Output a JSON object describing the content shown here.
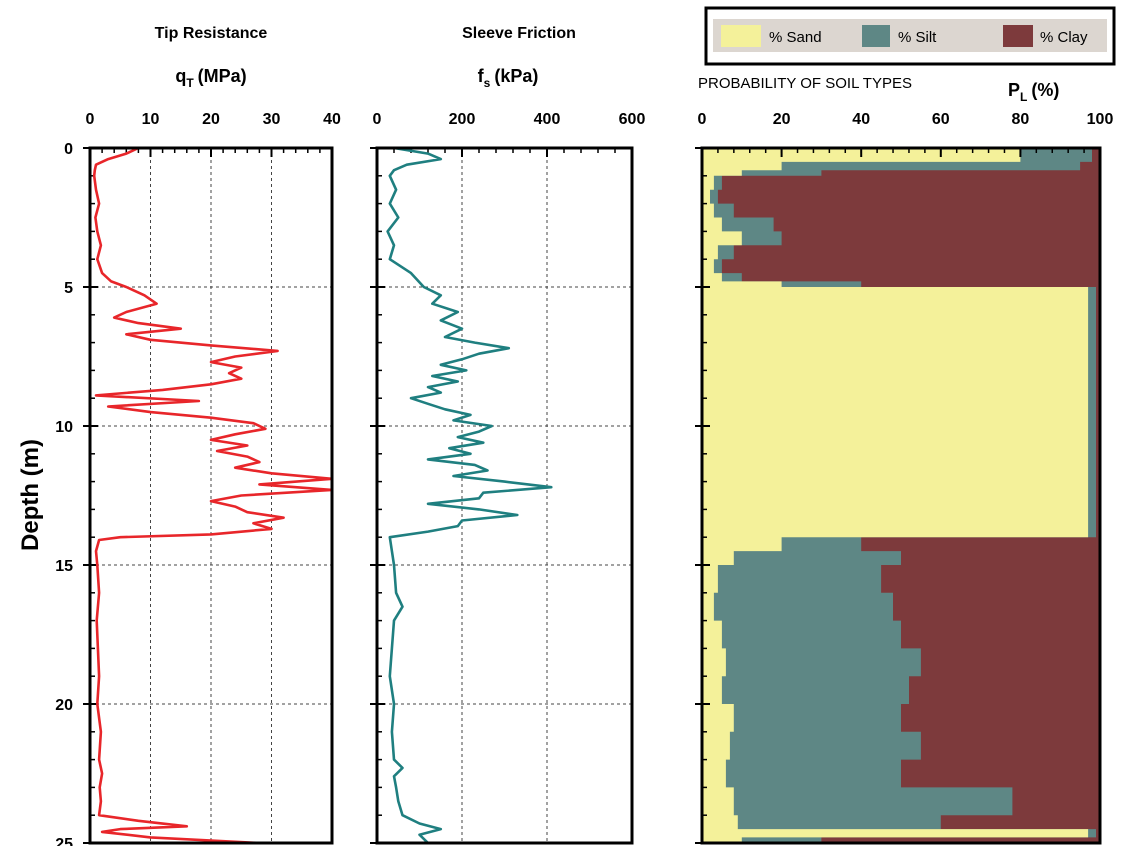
{
  "chart_data": [
    {
      "type": "line",
      "title": "Tip Resistance",
      "xlabel_main": "q",
      "xlabel_sub": "T",
      "xlabel_unit": "(MPa)",
      "ylabel": "Depth (m)",
      "xlim": [
        0,
        40
      ],
      "ylim": [
        0,
        25
      ],
      "y_inverted": true,
      "x_ticks": [
        "0",
        "10",
        "20",
        "30",
        "40"
      ],
      "y_ticks": [
        "0",
        "5",
        "10",
        "15",
        "20",
        "25"
      ],
      "grid": true,
      "color": "#e8262a",
      "series": [
        {
          "depth": [
            0.0,
            0.2,
            0.4,
            0.6,
            0.8,
            1.0,
            1.5,
            2.0,
            2.5,
            3.0,
            3.5,
            4.0,
            4.5,
            4.8,
            5.0,
            5.3,
            5.6,
            5.9,
            6.1,
            6.3,
            6.5,
            6.7,
            6.9,
            7.1,
            7.3,
            7.5,
            7.7,
            7.9,
            8.1,
            8.3,
            8.5,
            8.7,
            8.9,
            9.1,
            9.3,
            9.5,
            9.7,
            9.9,
            10.1,
            10.3,
            10.5,
            10.7,
            10.9,
            11.1,
            11.3,
            11.5,
            11.7,
            11.9,
            12.1,
            12.3,
            12.5,
            12.7,
            12.9,
            13.1,
            13.3,
            13.5,
            13.7,
            13.9,
            14.0,
            14.1,
            14.5,
            15.0,
            16.0,
            17.0,
            18.0,
            19.0,
            20.0,
            21.0,
            22.0,
            22.5,
            23.0,
            23.5,
            24.0,
            24.2,
            24.4,
            24.5,
            24.6,
            24.8,
            25.0
          ],
          "qt": [
            8,
            6,
            3,
            1,
            0.8,
            0.7,
            1.0,
            1.5,
            0.9,
            1.2,
            1.8,
            1.2,
            2.0,
            3.5,
            6.0,
            9.0,
            11.0,
            6.0,
            4.0,
            8.0,
            15.0,
            6.0,
            10.0,
            20.0,
            31.0,
            24.0,
            20.0,
            25.0,
            23.0,
            25.0,
            20.0,
            12.0,
            1.0,
            18.0,
            3.0,
            10.0,
            20.0,
            27.0,
            29.0,
            24.0,
            20.0,
            26.0,
            21.0,
            26.0,
            28.0,
            24.0,
            30.0,
            40.0,
            28.0,
            40.0,
            25.0,
            20.0,
            24.0,
            26.0,
            32.0,
            27.0,
            30.0,
            20.0,
            5.0,
            1.5,
            1.0,
            1.2,
            1.5,
            1.1,
            1.3,
            1.5,
            1.2,
            1.8,
            1.5,
            2.0,
            1.6,
            1.8,
            1.5,
            8.0,
            16.0,
            5.0,
            2.0,
            10.0,
            28.0
          ]
        }
      ]
    },
    {
      "type": "line",
      "title": "Sleeve Friction",
      "xlabel_main": "f",
      "xlabel_sub": "s",
      "xlabel_unit": "(kPa)",
      "xlim": [
        0,
        600
      ],
      "ylim": [
        0,
        25
      ],
      "y_inverted": true,
      "x_ticks": [
        "0",
        "200",
        "400",
        "600"
      ],
      "grid": true,
      "color": "#1f7f80",
      "series": [
        {
          "depth": [
            0.0,
            0.2,
            0.4,
            0.6,
            0.8,
            1.0,
            1.5,
            2.0,
            2.5,
            3.0,
            3.5,
            4.0,
            4.5,
            5.0,
            5.3,
            5.6,
            5.9,
            6.2,
            6.5,
            6.8,
            7.0,
            7.2,
            7.4,
            7.6,
            7.8,
            8.0,
            8.2,
            8.4,
            8.6,
            8.8,
            9.0,
            9.2,
            9.4,
            9.6,
            9.8,
            10.0,
            10.2,
            10.4,
            10.6,
            10.8,
            11.0,
            11.2,
            11.4,
            11.6,
            11.8,
            12.0,
            12.2,
            12.4,
            12.6,
            12.8,
            13.0,
            13.2,
            13.4,
            13.6,
            13.8,
            14.0,
            14.5,
            15.0,
            16.0,
            16.5,
            17.0,
            18.0,
            19.0,
            20.0,
            21.0,
            22.0,
            22.3,
            22.6,
            23.0,
            23.5,
            24.0,
            24.3,
            24.5,
            24.7,
            25.0
          ],
          "fs": [
            40,
            120,
            150,
            70,
            40,
            30,
            45,
            30,
            50,
            25,
            40,
            30,
            80,
            110,
            150,
            130,
            190,
            150,
            200,
            160,
            230,
            310,
            240,
            200,
            150,
            210,
            130,
            190,
            120,
            150,
            80,
            120,
            160,
            220,
            180,
            270,
            240,
            190,
            250,
            170,
            220,
            120,
            230,
            260,
            180,
            300,
            410,
            250,
            240,
            120,
            240,
            330,
            200,
            190,
            120,
            30,
            35,
            40,
            45,
            60,
            40,
            35,
            30,
            40,
            35,
            40,
            60,
            40,
            45,
            50,
            60,
            100,
            150,
            100,
            120
          ]
        }
      ]
    },
    {
      "type": "area",
      "title": "PROBABILITY OF SOIL TYPES",
      "xlabel_main": "P",
      "xlabel_sub": "L",
      "xlabel_unit": "(%)",
      "xlim": [
        0,
        100
      ],
      "ylim": [
        0,
        25
      ],
      "y_inverted": true,
      "x_ticks": [
        "0",
        "20",
        "40",
        "60",
        "80",
        "100"
      ],
      "stacked": true,
      "legend": [
        "% Sand",
        "% Silt",
        "% Clay"
      ],
      "legend_position": "top",
      "colors": {
        "sand": "#f4f19a",
        "silt": "#5e8785",
        "clay": "#7d3a3c"
      },
      "series": [
        {
          "name": "% Sand",
          "depth": [
            0.0,
            0.5,
            0.8,
            1.0,
            1.5,
            2.0,
            2.5,
            3.0,
            3.5,
            4.0,
            4.5,
            4.8,
            5.0,
            6.0,
            7.0,
            8.0,
            9.0,
            10.0,
            11.0,
            12.0,
            13.0,
            13.9,
            14.0,
            14.5,
            15.0,
            16.0,
            17.0,
            18.0,
            19.0,
            20.0,
            21.0,
            22.0,
            23.0,
            24.0,
            24.5,
            24.8,
            25.0
          ],
          "upper": [
            80,
            20,
            10,
            3,
            2,
            3,
            5,
            10,
            4,
            3,
            5,
            20,
            97,
            97,
            97,
            97,
            97,
            97,
            97,
            97,
            97,
            97,
            20,
            8,
            4,
            3,
            5,
            6,
            5,
            8,
            7,
            6,
            8,
            9,
            97,
            10,
            8
          ]
        },
        {
          "name": "% Silt",
          "depth": [
            0.0,
            0.5,
            0.8,
            1.0,
            1.5,
            2.0,
            2.5,
            3.0,
            3.5,
            4.0,
            4.5,
            4.8,
            5.0,
            6.0,
            7.0,
            8.0,
            9.0,
            10.0,
            11.0,
            12.0,
            13.0,
            13.9,
            14.0,
            14.5,
            15.0,
            16.0,
            17.0,
            18.0,
            19.0,
            20.0,
            21.0,
            22.0,
            23.0,
            24.0,
            24.5,
            24.8,
            25.0
          ],
          "upper": [
            98,
            95,
            30,
            5,
            4,
            8,
            18,
            20,
            8,
            5,
            10,
            40,
            99,
            99,
            99,
            99,
            99,
            99,
            99,
            99,
            99,
            99,
            40,
            50,
            45,
            48,
            50,
            55,
            52,
            50,
            55,
            50,
            78,
            60,
            99,
            30,
            40
          ]
        },
        {
          "name": "% Clay",
          "depth": [
            0.0,
            25.0
          ],
          "upper": [
            100,
            100
          ]
        }
      ]
    }
  ]
}
